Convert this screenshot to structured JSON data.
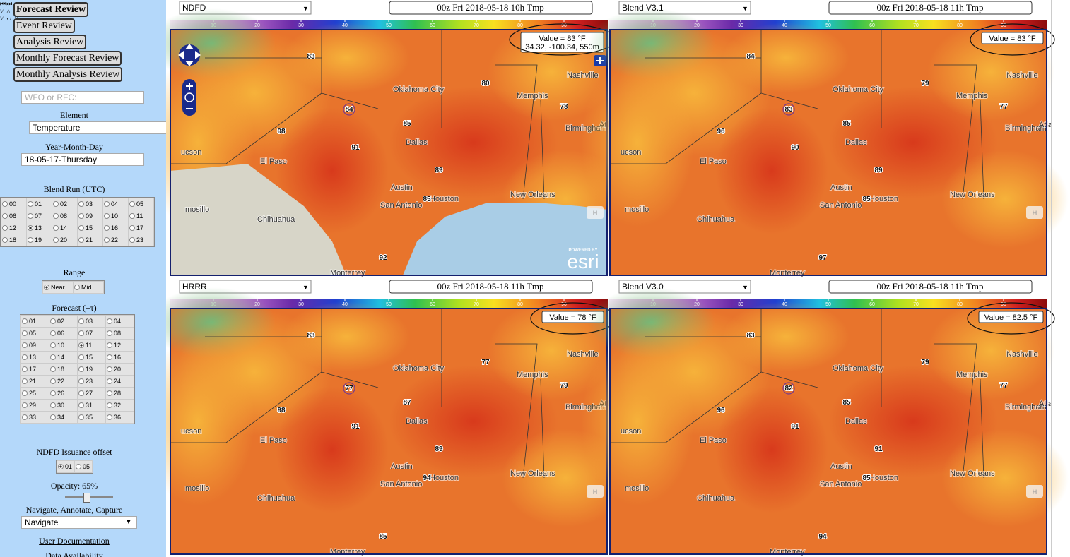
{
  "sidebar": {
    "nav_buttons": [
      "Forecast Review",
      "Event Review",
      "Analysis Review",
      "Monthly Forecast Review",
      "Monthly Analysis Review"
    ],
    "wfo_placeholder": "WFO or RFC:",
    "element_label": "Element",
    "element_value": "Temperature",
    "date_label": "Year-Month-Day",
    "date_value": "18-05-17-Thursday",
    "blend_run_label": "Blend Run (UTC)",
    "blend_runs": [
      "00",
      "01",
      "02",
      "03",
      "04",
      "05",
      "06",
      "07",
      "08",
      "09",
      "10",
      "11",
      "12",
      "13",
      "14",
      "15",
      "16",
      "17",
      "18",
      "19",
      "20",
      "21",
      "22",
      "23"
    ],
    "blend_run_selected": "13",
    "range_label": "Range",
    "range_options": [
      "Near",
      "Mid"
    ],
    "range_selected": "Near",
    "forecast_label": "Forecast (+τ)",
    "forecast_hours": [
      "01",
      "02",
      "03",
      "04",
      "05",
      "06",
      "07",
      "08",
      "09",
      "10",
      "11",
      "12",
      "13",
      "14",
      "15",
      "16",
      "17",
      "18",
      "19",
      "20",
      "21",
      "22",
      "23",
      "24",
      "25",
      "26",
      "27",
      "28",
      "29",
      "30",
      "31",
      "32",
      "33",
      "34",
      "35",
      "36"
    ],
    "forecast_selected": "11",
    "issuance_label": "NDFD Issuance offset",
    "issuance_options": [
      "01",
      "05"
    ],
    "issuance_selected": "01",
    "opacity_label": "Opacity: 65%",
    "mode_label": "Navigate, Annotate, Capture",
    "mode_value": "Navigate",
    "doc_link": "User Documentation",
    "availability": "Data Availability"
  },
  "colorbar": {
    "range": [
      0,
      100
    ],
    "ticks": [
      10,
      20,
      30,
      40,
      50,
      60,
      70,
      80,
      90
    ]
  },
  "map_labels": [
    "Oklahoma City",
    "Memphis",
    "Nashville",
    "Birmingham",
    "Dallas",
    "El Paso",
    "Austin",
    "San Antonio",
    "Houston",
    "New Orleans",
    "Chihuahua",
    "Monterrey",
    "mosillo",
    "ucson",
    "Atla"
  ],
  "esri": {
    "powered": "POWERED BY",
    "logo": "esri"
  },
  "home_button": "H",
  "panels": [
    {
      "model": "NDFD",
      "title": "00z Fri 2018-05-18 10h Tmp",
      "value": "Value = 83 °F",
      "location": "34.32, -100.34, 550m",
      "stations": [
        84,
        91,
        85,
        89,
        85,
        92,
        83,
        80,
        78,
        98
      ]
    },
    {
      "model": "Blend V3.1",
      "title": "00z Fri 2018-05-18 11h Tmp",
      "value": "Value = 83  °F",
      "stations": [
        83,
        90,
        85,
        89,
        85,
        97,
        84,
        79,
        77,
        96
      ]
    },
    {
      "model": "HRRR",
      "title": "00z Fri 2018-05-18 11h Tmp",
      "value": "Value = 78  °F",
      "stations": [
        77,
        91,
        87,
        89,
        94,
        85,
        83,
        77,
        79,
        98
      ]
    },
    {
      "model": "Blend V3.0",
      "title": "00z Fri 2018-05-18 11h Tmp",
      "value": "Value = 82.5  °F",
      "stations": [
        82,
        91,
        85,
        91,
        85,
        94,
        83,
        79,
        77,
        96
      ]
    }
  ]
}
